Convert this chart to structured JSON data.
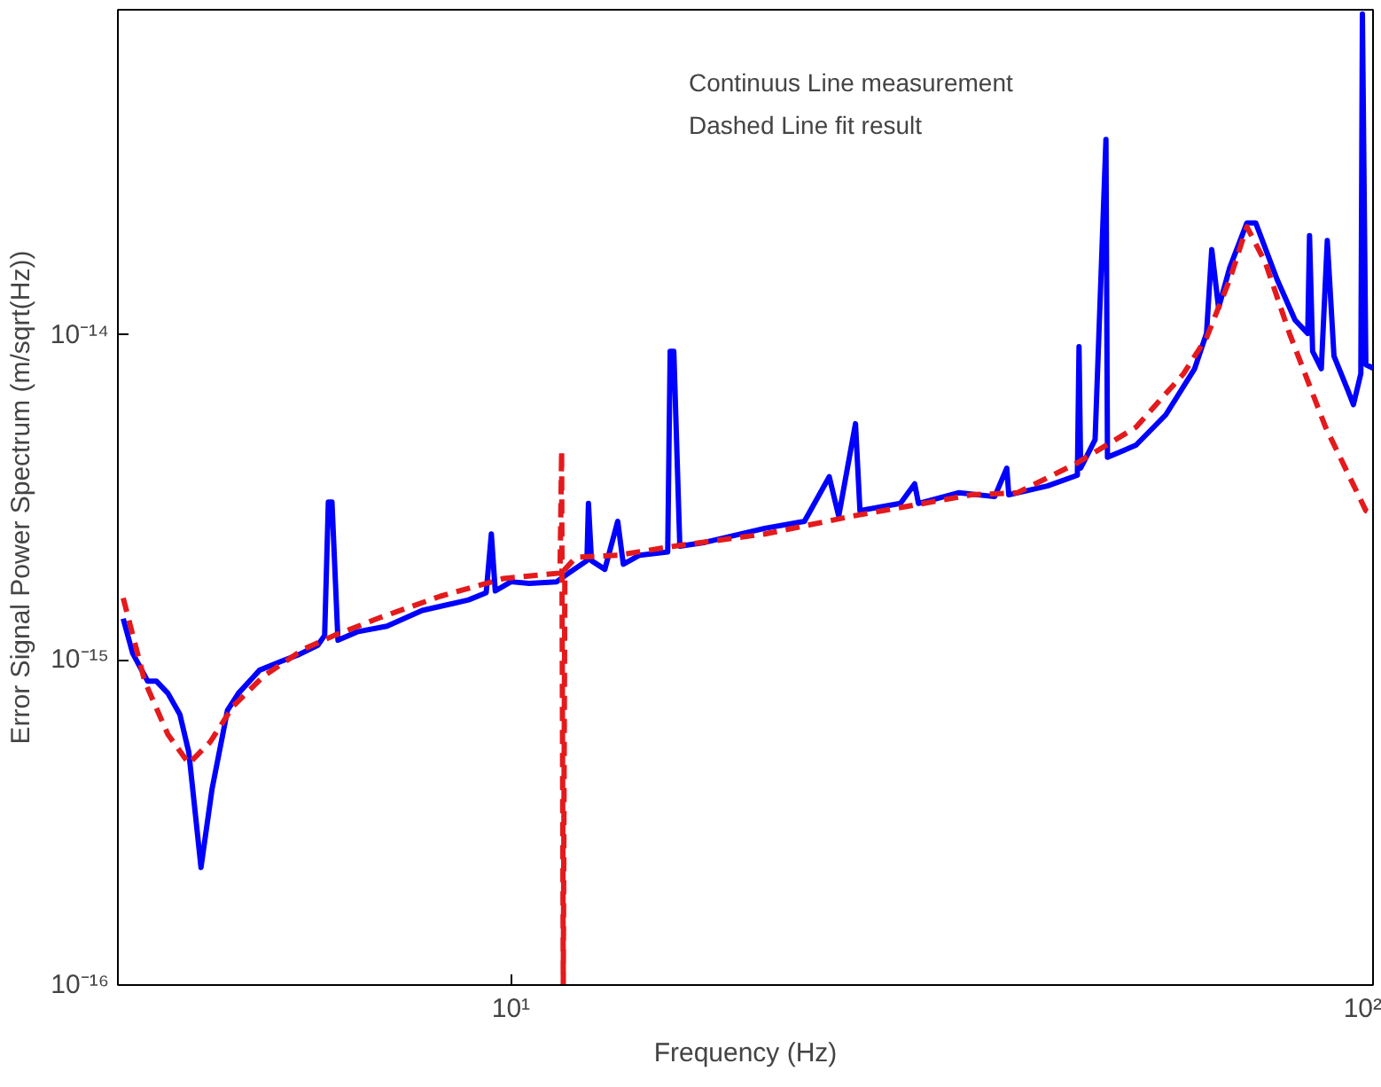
{
  "chart_data": {
    "type": "line",
    "xlabel": "Frequency (Hz)",
    "ylabel": "Error Signal Power Spectrum (m/sqrt(Hz))",
    "annotations": [
      "Continuus Line measurement",
      "Dashed Line fit result"
    ],
    "log": "xy",
    "grid": false,
    "xlim": [
      3.5,
      100
    ],
    "ylim": [
      1e-16,
      1e-13
    ],
    "xticks": [
      {
        "value": 10,
        "label": "10¹"
      },
      {
        "value": 100,
        "label": "10²"
      }
    ],
    "yticks": [
      {
        "value": 1e-16,
        "label": "10⁻¹⁶"
      },
      {
        "value": 1e-15,
        "label": "10⁻¹⁵"
      },
      {
        "value": 1e-14,
        "label": "10⁻¹⁴"
      }
    ],
    "series": [
      {
        "color": "#0000ff",
        "line_style": "solid",
        "x": [
          3.55,
          3.64,
          3.79,
          3.88,
          4.0,
          4.13,
          4.23,
          4.37,
          4.5,
          4.69,
          4.83,
          5.11,
          5.41,
          5.68,
          5.97,
          6.08,
          6.14,
          6.2,
          6.3,
          6.63,
          7.18,
          7.89,
          8.93,
          9.36,
          9.49,
          9.59,
          10.0,
          10.5,
          11.3,
          11.6,
          12.25,
          12.3,
          12.4,
          12.85,
          13.3,
          13.5,
          14.1,
          15.2,
          15.3,
          15.45,
          15.7,
          16.8,
          19.7,
          21.9,
          23.4,
          24.0,
          25.1,
          25.4,
          28.3,
          29.4,
          29.7,
          33.1,
          36.4,
          37.6,
          37.8,
          41.9,
          45.4,
          45.6,
          45.8,
          47.6,
          49.0,
          49.2,
          53.1,
          57.5,
          62.1,
          64.1,
          65.0,
          66.2,
          68.2,
          71.4,
          73.1,
          77.4,
          81.2,
          84.0,
          84.4,
          85.1,
          87.1,
          88.5,
          90.1,
          93.6,
          94.9,
          96.8,
          97.2,
          98.1,
          100
        ],
        "values": [
          1.34e-15,
          1.05e-15,
          8.6e-16,
          8.6e-16,
          7.9e-16,
          6.8e-16,
          5.2e-16,
          2.3e-16,
          4e-16,
          7e-16,
          7.9e-16,
          9.3e-16,
          9.9e-16,
          1.04e-15,
          1.11e-15,
          1.19e-15,
          3.06e-15,
          3.06e-15,
          1.15e-15,
          1.22e-15,
          1.27e-15,
          1.42e-15,
          1.53e-15,
          1.61e-15,
          2.44e-15,
          1.63e-15,
          1.74e-15,
          1.72e-15,
          1.74e-15,
          1.83e-15,
          2.02e-15,
          3.03e-15,
          2.02e-15,
          1.9e-15,
          2.67e-15,
          1.97e-15,
          2.1e-15,
          2.15e-15,
          8.9e-15,
          8.9e-15,
          2.24e-15,
          2.3e-15,
          2.54e-15,
          2.67e-15,
          3.66e-15,
          2.77e-15,
          5.33e-15,
          2.88e-15,
          3.03e-15,
          3.48e-15,
          3.03e-15,
          3.27e-15,
          3.18e-15,
          3.89e-15,
          3.22e-15,
          3.43e-15,
          3.7e-15,
          9.2e-15,
          3.89e-15,
          4.76e-15,
          3.99e-14,
          4.2e-15,
          4.58e-15,
          5.68e-15,
          7.87e-15,
          1.01e-14,
          1.83e-14,
          1.21e-14,
          1.61e-14,
          2.21e-14,
          2.21e-14,
          1.48e-14,
          1.11e-14,
          1.01e-14,
          2.02e-14,
          8.9e-15,
          7.87e-15,
          1.95e-14,
          8.6e-15,
          6.7e-15,
          6.1e-15,
          7.6e-15,
          9.7e-14,
          8.1e-15,
          7.9e-15
        ]
      },
      {
        "color": "#e41a1c",
        "line_style": "dashed",
        "x": [
          3.55,
          3.76,
          4.0,
          4.23,
          4.48,
          4.76,
          5.16,
          5.75,
          6.24,
          7.05,
          8.28,
          9.8,
          11.4,
          11.45,
          11.5,
          11.55,
          11.9,
          13.3,
          15.5,
          19.7,
          24.9,
          34.2,
          38.7,
          45.4,
          53.1,
          60.3,
          64.1,
          68.2,
          71.4,
          75.0,
          80.0,
          88.1,
          98.1,
          100
        ],
        "values": [
          1.55e-15,
          8.6e-16,
          5.9e-16,
          4.8e-16,
          5.6e-16,
          7.2e-16,
          8.9e-16,
          1.08e-15,
          1.19e-15,
          1.35e-15,
          1.57e-15,
          1.78e-15,
          1.85e-15,
          4.4e-15,
          1e-16,
          1.9e-15,
          2.07e-15,
          2.1e-15,
          2.24e-15,
          2.44e-15,
          2.77e-15,
          3.22e-15,
          3.27e-15,
          4.04e-15,
          5.2e-15,
          7.6e-15,
          9.8e-15,
          1.48e-14,
          2.15e-14,
          1.67e-14,
          1.01e-14,
          5.2e-15,
          2.88e-15,
          2.8e-15
        ]
      }
    ]
  }
}
